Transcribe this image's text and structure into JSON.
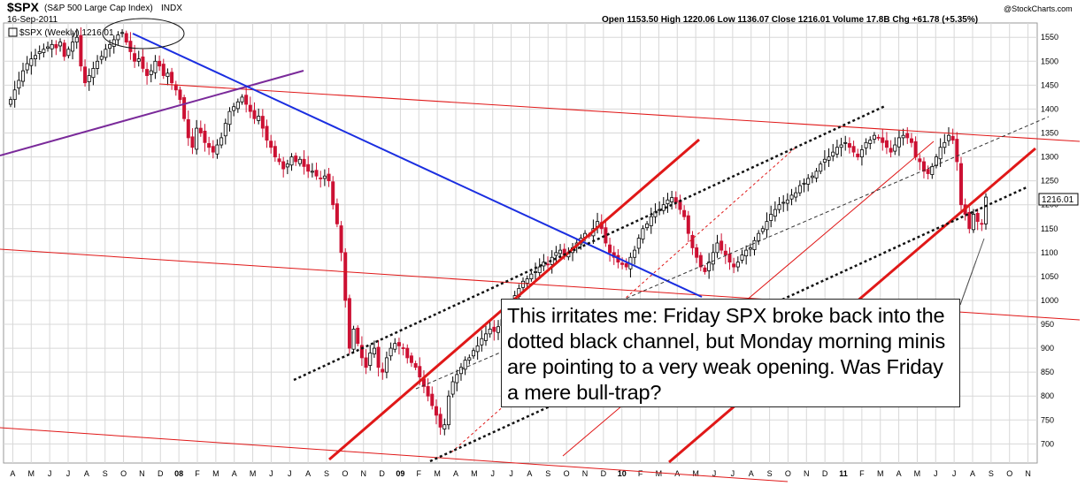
{
  "header": {
    "symbol": "$SPX",
    "name": "(S&P 500 Large Cap Index)",
    "exchange": "INDX",
    "date": "16-Sep-2011",
    "legend": "$SPX (Weekly) 1216.01",
    "ohlc": "Open 1153.50  High 1220.06  Low 1136.07  Close 1216.01  Volume 17.8B  Chg +61.78 (+5.35%)",
    "watermark": "@StockCharts.com",
    "price_tag": "1216.01"
  },
  "annotation": {
    "text": "This irritates me: Friday SPX broke back into the dotted black channel, but Monday morning minis are pointing to a very weak opening. Was Friday a mere bull-trap?"
  },
  "colors": {
    "up": "#000000",
    "down": "#cc1133",
    "trend_red": "#e01818",
    "trend_blue": "#1a2ee0",
    "trend_purple": "#7a2a9a",
    "grid": "#d8d8d8"
  },
  "chart_data": {
    "type": "candlestick",
    "title": "$SPX (S&P 500 Large Cap Index) INDX",
    "period": "Weekly",
    "y_range": [
      660,
      1580
    ],
    "y_ticks": [
      700,
      750,
      800,
      850,
      900,
      950,
      1000,
      1050,
      1100,
      1150,
      1200,
      1250,
      1300,
      1350,
      1400,
      1450,
      1500,
      1550
    ],
    "x_months": [
      "A",
      "M",
      "J",
      "J",
      "A",
      "S",
      "O",
      "N",
      "D",
      "08",
      "F",
      "M",
      "A",
      "M",
      "J",
      "J",
      "A",
      "S",
      "O",
      "N",
      "D",
      "09",
      "F",
      "M",
      "A",
      "M",
      "J",
      "J",
      "A",
      "S",
      "O",
      "N",
      "D",
      "10",
      "F",
      "M",
      "A",
      "M",
      "J",
      "J",
      "A",
      "S",
      "O",
      "N",
      "D",
      "11",
      "F",
      "M",
      "A",
      "M",
      "J",
      "J",
      "A",
      "S",
      "O",
      "N"
    ],
    "last_close": 1216.01,
    "closes": [
      1420,
      1440,
      1460,
      1480,
      1495,
      1505,
      1512,
      1520,
      1525,
      1530,
      1535,
      1528,
      1540,
      1510,
      1525,
      1540,
      1550,
      1490,
      1455,
      1470,
      1485,
      1500,
      1510,
      1525,
      1535,
      1545,
      1555,
      1560,
      1540,
      1520,
      1500,
      1505,
      1485,
      1470,
      1480,
      1500,
      1490,
      1470,
      1475,
      1455,
      1440,
      1420,
      1380,
      1340,
      1320,
      1360,
      1350,
      1330,
      1320,
      1310,
      1325,
      1340,
      1370,
      1395,
      1405,
      1415,
      1425,
      1410,
      1395,
      1380,
      1385,
      1360,
      1335,
      1320,
      1300,
      1290,
      1275,
      1285,
      1300,
      1290,
      1295,
      1280,
      1270,
      1270,
      1260,
      1255,
      1260,
      1250,
      1200,
      1160,
      1100,
      1000,
      900,
      940,
      910,
      880,
      860,
      890,
      900,
      860,
      850,
      880,
      900,
      910,
      905,
      900,
      880,
      870,
      860,
      840,
      820,
      800,
      780,
      760,
      735,
      740,
      800,
      830,
      845,
      860,
      875,
      880,
      895,
      905,
      920,
      930,
      940,
      935,
      945,
      960,
      975,
      990,
      1010,
      1025,
      1040,
      1045,
      1055,
      1060,
      1070,
      1080,
      1075,
      1090,
      1100,
      1105,
      1095,
      1100,
      1110,
      1120,
      1130,
      1140,
      1135,
      1150,
      1165,
      1150,
      1120,
      1100,
      1090,
      1080,
      1075,
      1070,
      1090,
      1105,
      1130,
      1150,
      1160,
      1175,
      1185,
      1190,
      1200,
      1210,
      1215,
      1205,
      1190,
      1175,
      1140,
      1110,
      1090,
      1070,
      1060,
      1080,
      1100,
      1120,
      1105,
      1095,
      1080,
      1070,
      1080,
      1095,
      1105,
      1110,
      1125,
      1140,
      1150,
      1165,
      1180,
      1190,
      1200,
      1205,
      1210,
      1220,
      1225,
      1240,
      1245,
      1255,
      1260,
      1270,
      1285,
      1295,
      1300,
      1310,
      1320,
      1325,
      1330,
      1320,
      1310,
      1300,
      1315,
      1330,
      1335,
      1345,
      1340,
      1330,
      1320,
      1310,
      1325,
      1340,
      1345,
      1340,
      1330,
      1300,
      1290,
      1270,
      1265,
      1280,
      1300,
      1320,
      1330,
      1345,
      1335,
      1290,
      1200,
      1180,
      1150,
      1180,
      1165,
      1160,
      1216
    ]
  }
}
